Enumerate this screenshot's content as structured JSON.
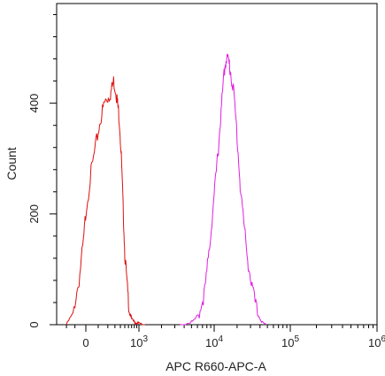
{
  "chart_data": {
    "type": "line",
    "title": "",
    "xlabel": "APC R660-APC-A",
    "ylabel": "Count",
    "x_scale": "biexponential",
    "ylim": [
      0,
      580
    ],
    "grid": false,
    "legend": "none",
    "x_ticks": [
      {
        "value": 0,
        "label": "0"
      },
      {
        "value": 1000,
        "label": "10",
        "sup": "3"
      },
      {
        "value": 10000,
        "label": "10",
        "sup": "4"
      },
      {
        "value": 100000,
        "label": "10",
        "sup": "5"
      },
      {
        "value": 1000000,
        "label": "10",
        "sup": "6"
      }
    ],
    "y_ticks": [
      {
        "value": 0,
        "label": "0"
      },
      {
        "value": 200,
        "label": "200"
      },
      {
        "value": 400,
        "label": "400"
      }
    ],
    "series": [
      {
        "color": "#dd1111",
        "x": [
          -200,
          -120,
          -60,
          -20,
          0,
          40,
          80,
          120,
          160,
          200,
          240,
          280,
          320,
          350,
          380,
          420,
          460,
          500,
          560,
          620,
          700,
          800,
          900,
          1000,
          1200
        ],
        "y": [
          0,
          20,
          80,
          150,
          205,
          275,
          325,
          370,
          400,
          410,
          420,
          440,
          420,
          395,
          370,
          300,
          210,
          130,
          70,
          30,
          10,
          5,
          3,
          2,
          0
        ]
      },
      {
        "color": "#e020e0",
        "x": [
          3500,
          4500,
          5500,
          6500,
          7500,
          8500,
          9500,
          10500,
          11500,
          12500,
          13500,
          14500,
          15500,
          16500,
          18000,
          20000,
          22000,
          25000,
          28000,
          32000,
          37000,
          42000,
          48000
        ],
        "y": [
          0,
          3,
          8,
          25,
          60,
          130,
          200,
          265,
          330,
          395,
          455,
          485,
          475,
          455,
          420,
          340,
          250,
          170,
          110,
          60,
          20,
          5,
          0
        ]
      }
    ]
  }
}
